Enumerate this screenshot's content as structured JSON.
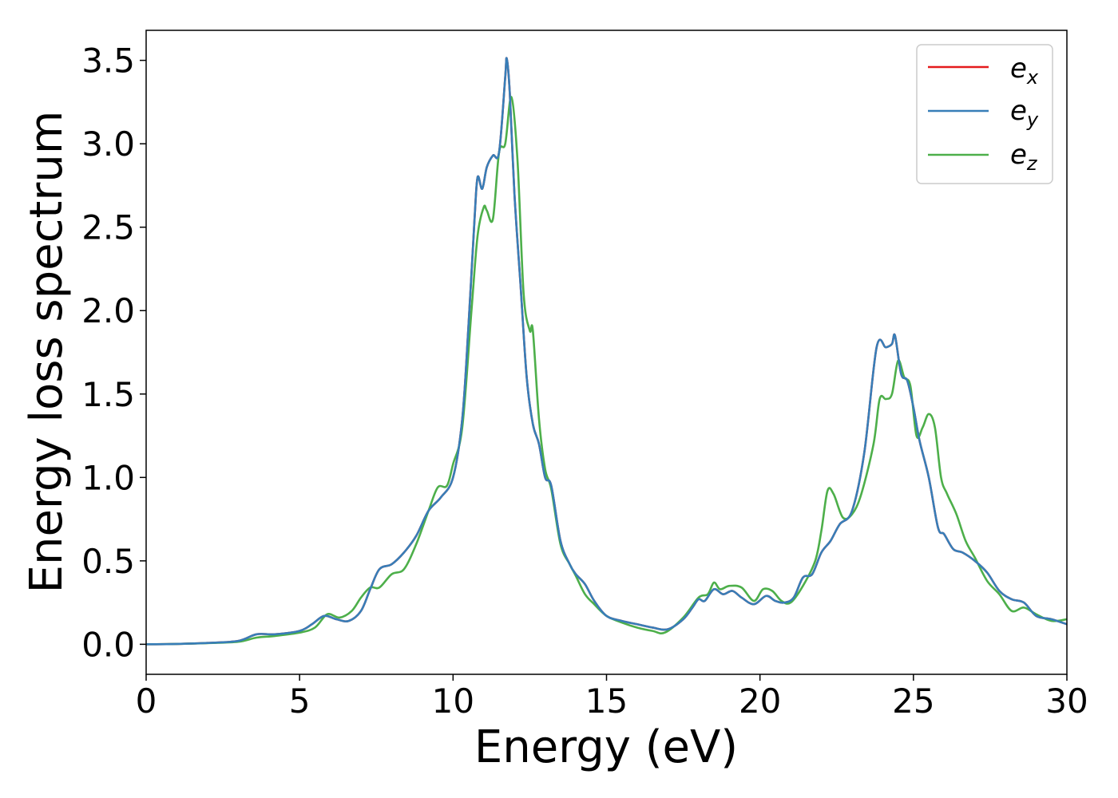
{
  "chart_data": {
    "type": "line",
    "title": "",
    "xlabel": "Energy (eV)",
    "ylabel": "Energy loss spectrum",
    "xlim": [
      0,
      30
    ],
    "ylim": [
      -0.18,
      3.68
    ],
    "xticks": [
      0,
      5,
      10,
      15,
      20,
      25,
      30
    ],
    "yticks": [
      0.0,
      0.5,
      1.0,
      1.5,
      2.0,
      2.5,
      3.0,
      3.5
    ],
    "xtick_labels": [
      "0",
      "5",
      "10",
      "15",
      "20",
      "25",
      "30"
    ],
    "ytick_labels": [
      "0.0",
      "0.5",
      "1.0",
      "1.5",
      "2.0",
      "2.5",
      "3.0",
      "3.5"
    ],
    "grid": false,
    "legend": {
      "placement": "top-right",
      "entries": [
        {
          "symbol": "e",
          "subscript": "x",
          "color": "#e41a1c"
        },
        {
          "symbol": "e",
          "subscript": "y",
          "color": "#377eb8"
        },
        {
          "symbol": "e",
          "subscript": "z",
          "color": "#4daf4a"
        }
      ]
    },
    "series": [
      {
        "name": "e_x",
        "color": "#e41a1c",
        "x": [
          0,
          1,
          2,
          3,
          3.6,
          4.2,
          5,
          5.4,
          5.8,
          6.2,
          6.6,
          7,
          7.3,
          7.6,
          8,
          8.4,
          8.8,
          9.2,
          9.6,
          10,
          10.3,
          10.5,
          10.7,
          10.8,
          10.95,
          11.1,
          11.3,
          11.5,
          11.7,
          11.75,
          11.85,
          12,
          12.2,
          12.4,
          12.6,
          12.8,
          13,
          13.2,
          13.5,
          13.8,
          14,
          14.3,
          14.6,
          15,
          15.5,
          16,
          16.5,
          17,
          17.5,
          17.8,
          18,
          18.2,
          18.5,
          18.8,
          19.1,
          19.4,
          19.8,
          20.2,
          20.5,
          20.8,
          21.1,
          21.4,
          21.7,
          22,
          22.3,
          22.6,
          23,
          23.4,
          23.8,
          24.1,
          24.3,
          24.4,
          24.6,
          24.8,
          25,
          25.2,
          25.5,
          25.8,
          26,
          26.3,
          26.6,
          27,
          27.4,
          27.8,
          28.2,
          28.6,
          29,
          29.5,
          30
        ],
        "values": [
          0.0,
          0.002,
          0.008,
          0.02,
          0.06,
          0.06,
          0.08,
          0.12,
          0.17,
          0.15,
          0.14,
          0.2,
          0.33,
          0.45,
          0.48,
          0.55,
          0.65,
          0.8,
          0.88,
          1.0,
          1.35,
          1.9,
          2.55,
          2.8,
          2.73,
          2.86,
          2.93,
          2.95,
          3.4,
          3.51,
          3.3,
          2.7,
          2.15,
          1.6,
          1.32,
          1.2,
          1.0,
          0.95,
          0.62,
          0.48,
          0.42,
          0.36,
          0.26,
          0.17,
          0.14,
          0.12,
          0.1,
          0.09,
          0.15,
          0.22,
          0.27,
          0.26,
          0.33,
          0.3,
          0.32,
          0.28,
          0.24,
          0.29,
          0.26,
          0.25,
          0.28,
          0.4,
          0.42,
          0.55,
          0.62,
          0.72,
          0.8,
          1.15,
          1.78,
          1.78,
          1.8,
          1.85,
          1.62,
          1.58,
          1.42,
          1.22,
          1.0,
          0.7,
          0.66,
          0.57,
          0.55,
          0.5,
          0.43,
          0.32,
          0.27,
          0.25,
          0.17,
          0.15,
          0.12
        ]
      },
      {
        "name": "e_y",
        "color": "#377eb8",
        "x": [
          0,
          1,
          2,
          3,
          3.6,
          4.2,
          5,
          5.4,
          5.8,
          6.2,
          6.6,
          7,
          7.3,
          7.6,
          8,
          8.4,
          8.8,
          9.2,
          9.6,
          10,
          10.3,
          10.5,
          10.7,
          10.8,
          10.95,
          11.1,
          11.3,
          11.5,
          11.7,
          11.75,
          11.85,
          12,
          12.2,
          12.4,
          12.6,
          12.8,
          13,
          13.2,
          13.5,
          13.8,
          14,
          14.3,
          14.6,
          15,
          15.5,
          16,
          16.5,
          17,
          17.5,
          17.8,
          18,
          18.2,
          18.5,
          18.8,
          19.1,
          19.4,
          19.8,
          20.2,
          20.5,
          20.8,
          21.1,
          21.4,
          21.7,
          22,
          22.3,
          22.6,
          23,
          23.4,
          23.8,
          24.1,
          24.3,
          24.4,
          24.6,
          24.8,
          25,
          25.2,
          25.5,
          25.8,
          26,
          26.3,
          26.6,
          27,
          27.4,
          27.8,
          28.2,
          28.6,
          29,
          29.5,
          30
        ],
        "values": [
          0.0,
          0.002,
          0.008,
          0.02,
          0.06,
          0.06,
          0.08,
          0.12,
          0.17,
          0.15,
          0.14,
          0.2,
          0.33,
          0.45,
          0.48,
          0.55,
          0.65,
          0.8,
          0.88,
          1.0,
          1.35,
          1.9,
          2.55,
          2.8,
          2.73,
          2.86,
          2.93,
          2.95,
          3.4,
          3.51,
          3.3,
          2.7,
          2.15,
          1.6,
          1.32,
          1.2,
          1.0,
          0.95,
          0.62,
          0.48,
          0.42,
          0.36,
          0.26,
          0.17,
          0.14,
          0.12,
          0.1,
          0.09,
          0.15,
          0.22,
          0.27,
          0.26,
          0.33,
          0.3,
          0.32,
          0.28,
          0.24,
          0.29,
          0.26,
          0.25,
          0.28,
          0.4,
          0.42,
          0.55,
          0.62,
          0.72,
          0.8,
          1.15,
          1.78,
          1.78,
          1.8,
          1.85,
          1.62,
          1.58,
          1.42,
          1.22,
          1.0,
          0.7,
          0.66,
          0.57,
          0.55,
          0.5,
          0.43,
          0.32,
          0.27,
          0.25,
          0.17,
          0.15,
          0.12
        ]
      },
      {
        "name": "e_z",
        "color": "#4daf4a",
        "x": [
          0,
          1,
          2,
          3,
          3.6,
          4.2,
          5,
          5.5,
          5.9,
          6.3,
          6.7,
          7,
          7.3,
          7.6,
          8,
          8.4,
          8.8,
          9.2,
          9.5,
          9.8,
          10,
          10.3,
          10.6,
          10.8,
          11,
          11.1,
          11.3,
          11.5,
          11.7,
          11.9,
          12.1,
          12.3,
          12.5,
          12.6,
          12.8,
          13,
          13.2,
          13.5,
          13.8,
          14,
          14.3,
          14.6,
          15,
          15.5,
          16,
          16.5,
          16.9,
          17.5,
          18,
          18.3,
          18.5,
          18.7,
          19,
          19.4,
          19.8,
          20.1,
          20.4,
          20.7,
          21,
          21.4,
          21.8,
          22,
          22.2,
          22.4,
          22.7,
          23,
          23.3,
          23.7,
          23.9,
          24.1,
          24.3,
          24.5,
          24.7,
          24.9,
          25.1,
          25.3,
          25.5,
          25.7,
          25.9,
          26.1,
          26.4,
          26.7,
          27,
          27.4,
          27.8,
          28.2,
          28.6,
          29,
          29.5,
          30
        ],
        "values": [
          0.0,
          0.002,
          0.007,
          0.015,
          0.04,
          0.05,
          0.07,
          0.1,
          0.18,
          0.16,
          0.2,
          0.28,
          0.34,
          0.34,
          0.42,
          0.45,
          0.6,
          0.8,
          0.94,
          0.95,
          1.08,
          1.3,
          2.0,
          2.45,
          2.62,
          2.6,
          2.55,
          2.95,
          3.0,
          3.28,
          2.9,
          2.1,
          1.88,
          1.88,
          1.35,
          1.05,
          0.93,
          0.6,
          0.48,
          0.41,
          0.3,
          0.24,
          0.17,
          0.13,
          0.1,
          0.08,
          0.07,
          0.16,
          0.28,
          0.3,
          0.37,
          0.33,
          0.35,
          0.34,
          0.26,
          0.33,
          0.32,
          0.26,
          0.25,
          0.35,
          0.5,
          0.68,
          0.92,
          0.9,
          0.76,
          0.78,
          0.9,
          1.2,
          1.47,
          1.47,
          1.5,
          1.7,
          1.6,
          1.55,
          1.25,
          1.3,
          1.38,
          1.3,
          1.0,
          0.9,
          0.78,
          0.62,
          0.52,
          0.38,
          0.3,
          0.2,
          0.22,
          0.18,
          0.14,
          0.15
        ]
      }
    ]
  }
}
